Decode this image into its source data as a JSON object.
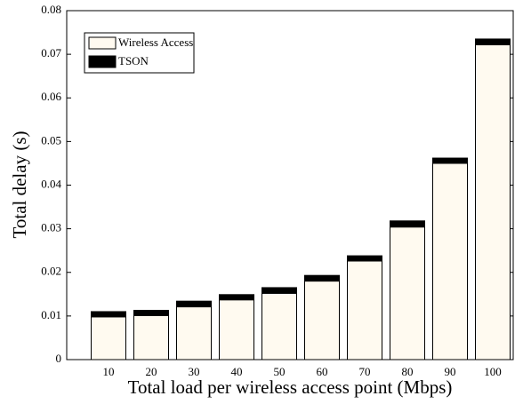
{
  "chart_data": {
    "type": "stacked_bar",
    "xlabel": "Total load per wireless access point (Mbps)",
    "ylabel": "Total delay (s)",
    "categories": [
      "10",
      "20",
      "30",
      "40",
      "50",
      "60",
      "70",
      "80",
      "90",
      "100"
    ],
    "series": [
      {
        "name": "Wireless Access",
        "color": "#fffaf0",
        "values": [
          0.0098,
          0.0101,
          0.0121,
          0.0137,
          0.0152,
          0.018,
          0.0226,
          0.0304,
          0.045,
          0.0722
        ]
      },
      {
        "name": "TSON",
        "color": "#000000",
        "values": [
          0.0012,
          0.0012,
          0.0013,
          0.0012,
          0.0013,
          0.0013,
          0.0012,
          0.0014,
          0.0012,
          0.0013
        ]
      }
    ],
    "ylim": [
      0,
      0.08
    ],
    "yticks": [
      0,
      0.01,
      0.02,
      0.03,
      0.04,
      0.05,
      0.06,
      0.07,
      0.08
    ],
    "legend": "upper left"
  }
}
